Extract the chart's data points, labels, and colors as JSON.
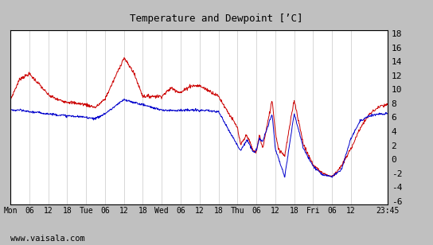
{
  "title": "Temperature and Dewpoint [’C]",
  "ylabel_right_ticks": [
    -6,
    -4,
    -2,
    0,
    2,
    4,
    6,
    8,
    10,
    12,
    14,
    16,
    18
  ],
  "ylim": [
    -6.5,
    18.5
  ],
  "plot_bg_color": "#ffffff",
  "fig_bg_color": "#c0c0c0",
  "grid_color": "#c8c8c8",
  "temp_color": "#cc0000",
  "dewp_color": "#0000cc",
  "watermark": "www.vaisala.com",
  "x_tick_labels": [
    "Mon",
    "06",
    "12",
    "18",
    "Tue",
    "06",
    "12",
    "18",
    "Wed",
    "06",
    "12",
    "18",
    "Thu",
    "06",
    "12",
    "18",
    "Fri",
    "06",
    "12",
    "23:45"
  ],
  "x_tick_positions": [
    0,
    6,
    12,
    18,
    24,
    30,
    36,
    42,
    48,
    54,
    60,
    66,
    72,
    78,
    84,
    90,
    96,
    102,
    108,
    119.75
  ],
  "total_hours": 119.75,
  "n_points": 960
}
